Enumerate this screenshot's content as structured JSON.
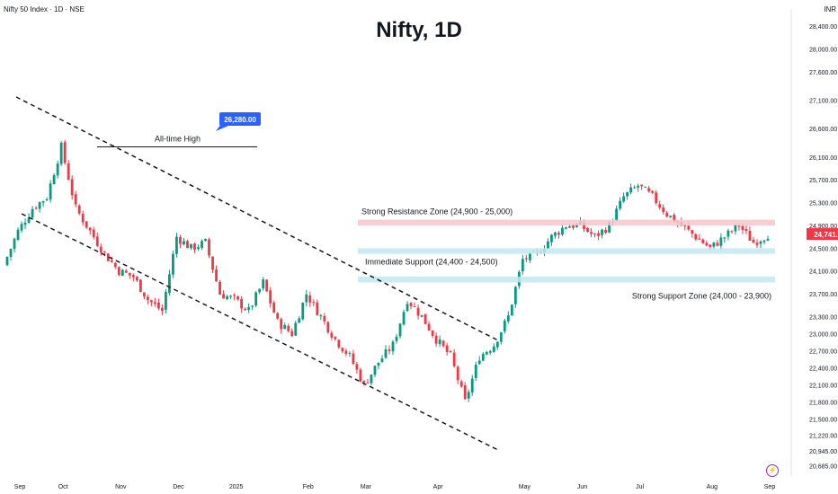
{
  "header": {
    "symbol": "Nifty 50 Index · 1D · NSE",
    "currency": "INR"
  },
  "chart_data": {
    "type": "candlestick",
    "title": "Nifty, 1D",
    "ylim": [
      20500,
      28700
    ],
    "y_ticks": [
      "28,400.00",
      "28,000.00",
      "27,600.00",
      "27,100.00",
      "26,600.00",
      "26,100.00",
      "25,700.00",
      "25,300.00",
      "24,900.00",
      "24,500.00",
      "24,100.00",
      "23,700.00",
      "23,300.00",
      "23,000.00",
      "22,700.00",
      "22,400.00",
      "22,100.00",
      "21,800.00",
      "21,500.00",
      "21,220.00",
      "20,945.00",
      "20,685.00"
    ],
    "x_ticks": [
      "Sep",
      "Oct",
      "Nov",
      "Dec",
      "2025",
      "Feb",
      "Mar",
      "Apr",
      "May",
      "Jun",
      "Jul",
      "Aug",
      "Sep"
    ],
    "last_price": "24,741.00",
    "colors": {
      "up": "#089981",
      "down": "#f23645",
      "resistance": "#f8c6cb",
      "support": "#bfe8ee",
      "label": "#2962ff"
    },
    "keypoints": [
      [
        "Aug",
        24200
      ],
      [
        "Sep",
        24800
      ],
      [
        "",
        25200
      ],
      [
        "",
        25400
      ],
      [
        "Oct",
        26277
      ],
      [
        "",
        25200
      ],
      [
        "",
        24800
      ],
      [
        "",
        24400
      ],
      [
        "Nov",
        24100
      ],
      [
        "",
        24000
      ],
      [
        "",
        23600
      ],
      [
        "",
        23400
      ],
      [
        "Dec",
        24700
      ],
      [
        "",
        24500
      ],
      [
        "",
        24600
      ],
      [
        "",
        23700
      ],
      [
        "2025",
        23600
      ],
      [
        "",
        23400
      ],
      [
        "",
        23900
      ],
      [
        "",
        23200
      ],
      [
        "",
        23000
      ],
      [
        "Feb",
        23700
      ],
      [
        "",
        23300
      ],
      [
        "",
        22900
      ],
      [
        "",
        22600
      ],
      [
        "Mar",
        22100
      ],
      [
        "",
        22500
      ],
      [
        "",
        22800
      ],
      [
        "",
        23600
      ],
      [
        "",
        23300
      ],
      [
        "Apr",
        22900
      ],
      [
        "",
        22600
      ],
      [
        "",
        21800
      ],
      [
        "",
        22600
      ],
      [
        "",
        22800
      ],
      [
        "",
        23300
      ],
      [
        "May",
        24300
      ],
      [
        "",
        24400
      ],
      [
        "",
        24700
      ],
      [
        "",
        24900
      ],
      [
        "Jun",
        24900
      ],
      [
        "",
        24700
      ],
      [
        "",
        24900
      ],
      [
        "",
        25400
      ],
      [
        "Jul",
        25600
      ],
      [
        "",
        25400
      ],
      [
        "",
        25100
      ],
      [
        "",
        24900
      ],
      [
        "",
        24700
      ],
      [
        "Aug",
        24500
      ],
      [
        "",
        24700
      ],
      [
        "",
        24900
      ],
      [
        "",
        24600
      ],
      [
        "Sep",
        24741
      ]
    ],
    "levels": {
      "ath": {
        "label": "All-time High",
        "value": "26,280.00"
      },
      "resistance": {
        "label": "Strong Resistance Zone (24,900 - 25,000)",
        "low": 24900,
        "high": 25000
      },
      "immediate_support": {
        "label": "Immediate Support (24,400 - 24,500)",
        "low": 24400,
        "high": 24500
      },
      "strong_support": {
        "label": "Strong Support Zone (24,000 - 23,900)",
        "low": 23900,
        "high": 24000
      }
    }
  }
}
